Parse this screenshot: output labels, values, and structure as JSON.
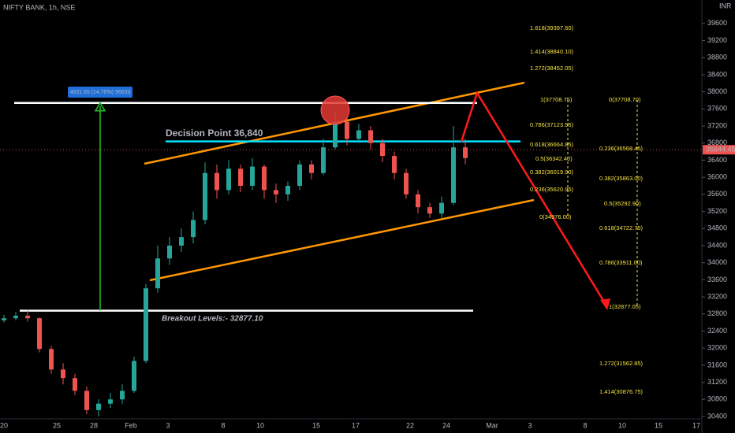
{
  "chart_data": {
    "type": "candlestick",
    "title": "NIFTY BANK, 1h, NSE",
    "currency": "INR",
    "x_labels": [
      "20",
      "25",
      "28",
      "Feb",
      "3",
      "8",
      "10",
      "15",
      "17",
      "22",
      "24",
      "Mar",
      "3",
      "8",
      "10",
      "15",
      "17"
    ],
    "open": [
      32650,
      32700,
      32760,
      32700,
      31980,
      31500,
      31300,
      31000,
      30550,
      30700,
      30800,
      31000,
      31700,
      33400,
      34100,
      34400,
      34600,
      35000,
      36100,
      35700,
      36200,
      35800,
      36250,
      35700,
      35600,
      35800,
      36300,
      36100,
      36700,
      37300,
      36900,
      37100,
      36800,
      36500,
      36100,
      35600,
      35300,
      35150,
      35400,
      36700
    ],
    "high": [
      32780,
      32850,
      32880,
      32720,
      32050,
      31650,
      31400,
      31100,
      30800,
      30950,
      31150,
      31800,
      33500,
      34400,
      34600,
      34800,
      35200,
      36350,
      36300,
      36400,
      36300,
      36450,
      36300,
      35850,
      35900,
      36400,
      36400,
      36900,
      37550,
      37400,
      37250,
      37200,
      36900,
      36600,
      36200,
      35700,
      35400,
      35550,
      37200,
      36900
    ],
    "low": [
      32600,
      32650,
      32620,
      31900,
      31400,
      31150,
      30900,
      30450,
      30400,
      30600,
      30700,
      30950,
      31650,
      33300,
      33950,
      34250,
      34450,
      34900,
      35500,
      35600,
      35650,
      35700,
      35500,
      35400,
      35450,
      35700,
      35950,
      36050,
      36650,
      36750,
      36800,
      36650,
      36350,
      35950,
      35500,
      35150,
      35050,
      35050,
      35350,
      36300
    ],
    "close": [
      32700,
      32760,
      32700,
      31980,
      31500,
      31300,
      31000,
      30550,
      30700,
      30800,
      31000,
      31700,
      33400,
      34100,
      34400,
      34600,
      35000,
      36100,
      35700,
      36200,
      35800,
      36250,
      35700,
      35600,
      35800,
      36300,
      36100,
      36700,
      37300,
      36900,
      37100,
      36800,
      36500,
      36100,
      35600,
      35300,
      35150,
      35400,
      36700,
      36450
    ],
    "up_color": "#26a69a",
    "down_color": "#ef5350",
    "ylim": [
      30400,
      40150
    ],
    "yticks": [
      30400,
      30800,
      31200,
      31600,
      32000,
      32400,
      32800,
      33200,
      33600,
      34000,
      34400,
      34800,
      35200,
      35600,
      36000,
      36400,
      36800,
      37200,
      37600,
      38000,
      38400,
      38800,
      39200,
      39600
    ],
    "last_price": 36644.45,
    "levels": [
      {
        "value": 37740,
        "color": "#ffffff"
      },
      {
        "label": "Decision Point 36,840",
        "value": 36840,
        "color": "#00e5ff"
      },
      {
        "label": "Breakout Levels:- 32877.10",
        "value": 32877.1,
        "color": "#ffffff"
      }
    ],
    "measure_label": "4831.65 (14.70%) 96633",
    "fib_left": [
      "1.618(39397.60)",
      "1.414(38840.10)",
      "1.272(38452.05)",
      "1(37708.75)",
      "0.786(37123.95)",
      "0.618(36664.85)",
      "0.5(36342.40)",
      "0.382(36019.90)",
      "0.236(35620.95)",
      "0(34976.00)"
    ],
    "fib_right": [
      "0(37708.70)",
      "0.236(36568.45)",
      "0.382(35863.00)",
      "0.5(35292.90)",
      "0.618(34722.75)",
      "0.786(33911.00)",
      "1(32877.05)",
      "1.272(31562.85)",
      "1.414(30876.75)"
    ]
  }
}
